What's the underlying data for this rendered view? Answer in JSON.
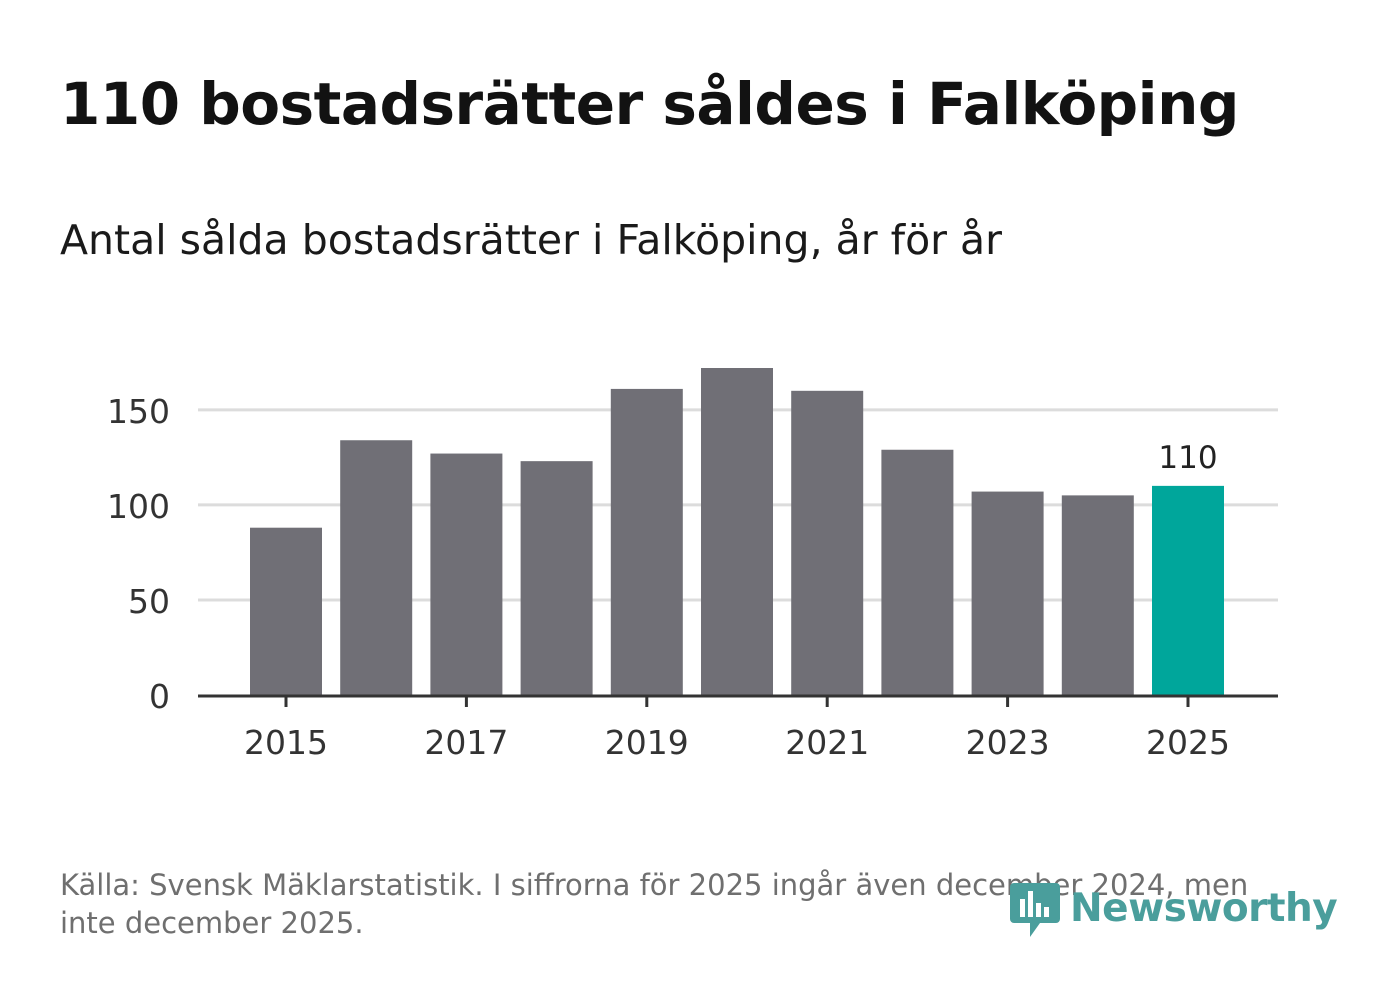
{
  "page": {
    "title": "110 bostadsrätter såldes i Falköping",
    "subtitle": "Antal sålda bostadsrätter i Falköping, år för år",
    "footer": "Källa: Svensk Mäklarstatistik. I siffrorna för 2025 ingår även december 2024, men inte december 2025.",
    "logo_text": "Newsworthy"
  },
  "colors": {
    "bar": "#706f76",
    "highlight": "#00a69b",
    "grid": "#dcdcdc",
    "axis": "#333333",
    "tick_text": "#333333",
    "logo": "#4a9e9c"
  },
  "chart_data": {
    "type": "bar",
    "title": "110 bostadsrätter såldes i Falköping",
    "subtitle": "Antal sålda bostadsrätter i Falköping, år för år",
    "xlabel": "",
    "ylabel": "",
    "categories": [
      "2015",
      "2016",
      "2017",
      "2018",
      "2019",
      "2020",
      "2021",
      "2022",
      "2023",
      "2024",
      "2025"
    ],
    "values": [
      88,
      134,
      127,
      123,
      161,
      172,
      160,
      129,
      107,
      105,
      110
    ],
    "highlight_index": 10,
    "data_labels": [
      {
        "index": 10,
        "text": "110"
      }
    ],
    "ylim": [
      0,
      172
    ],
    "y_ticks": [
      0,
      50,
      100,
      150
    ],
    "x_ticks": [
      "2015",
      "2017",
      "2019",
      "2021",
      "2023",
      "2025"
    ],
    "grid": true,
    "legend": "none"
  }
}
